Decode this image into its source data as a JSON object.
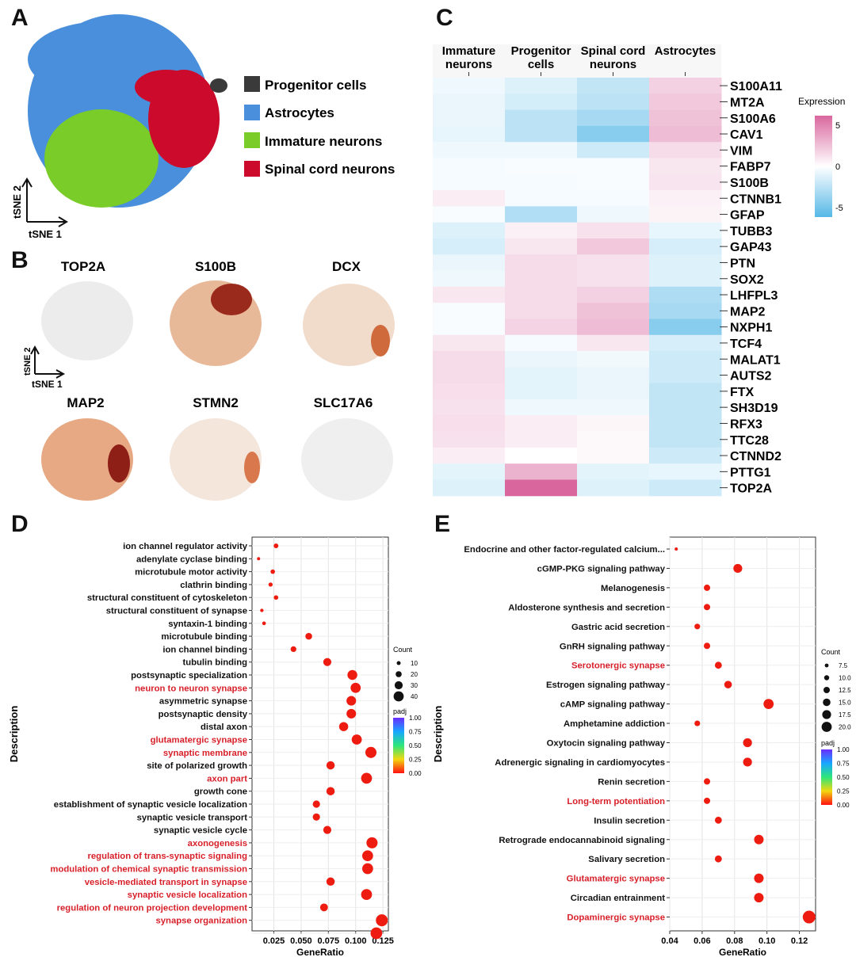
{
  "panels": {
    "A": "A",
    "B": "B",
    "C": "C",
    "D": "D",
    "E": "E"
  },
  "colors": {
    "progenitor": "#3a3a3a",
    "astrocytes": "#4a8fdb",
    "immature": "#7acc29",
    "spinal": "#cc0a2b",
    "highlight_text": "#d8202a",
    "dot": "#ee1c10"
  },
  "panel_a": {
    "legend": [
      "Progenitor cells",
      "Astrocytes",
      "Immature neurons",
      "Spinal cord neurons"
    ],
    "axis_y": "tSNE 2",
    "axis_x": "tSNE 1"
  },
  "panel_b": {
    "genes": [
      "TOP2A",
      "S100B",
      "DCX",
      "MAP2",
      "STMN2",
      "SLC17A6"
    ],
    "axis_y": "tSNE 2",
    "axis_x": "tSNE 1"
  },
  "chart_data": [
    {
      "type": "heatmap",
      "panel": "C",
      "columns": [
        "Immature neurons",
        "Progenitor cells",
        "Spinal cord neurons",
        "Astrocytes"
      ],
      "rows": [
        "S100A11",
        "MT2A",
        "S100A6",
        "CAV1",
        "VIM",
        "FABP7",
        "S100B",
        "CTNNB1",
        "GFAP",
        "TUBB3",
        "GAP43",
        "PTN",
        "SOX2",
        "LHFPL3",
        "MAP2",
        "NXPH1",
        "TCF4",
        "MALAT1",
        "AUTS2",
        "FTX",
        "SH3D19",
        "RFX3",
        "TTC28",
        "CTNND2",
        "PTTG1",
        "TOP2A"
      ],
      "values": [
        [
          -0.5,
          -1.0,
          -1.8,
          1.5
        ],
        [
          -0.6,
          -1.3,
          -2.0,
          1.8
        ],
        [
          -0.6,
          -2.0,
          -2.6,
          2.0
        ],
        [
          -0.7,
          -2.0,
          -3.5,
          2.2
        ],
        [
          -0.5,
          -0.5,
          -1.5,
          1.2
        ],
        [
          -0.3,
          -0.2,
          -0.2,
          0.8
        ],
        [
          -0.3,
          -0.3,
          -0.2,
          0.9
        ],
        [
          0.6,
          -0.3,
          -0.3,
          0.5
        ],
        [
          -0.2,
          -2.3,
          -0.5,
          0.4
        ],
        [
          -1.0,
          0.5,
          1.0,
          -0.7
        ],
        [
          -1.2,
          0.8,
          1.8,
          -1.2
        ],
        [
          -0.6,
          1.2,
          1.0,
          -1.0
        ],
        [
          -0.5,
          1.2,
          1.0,
          -1.0
        ],
        [
          0.8,
          1.2,
          1.5,
          -2.4
        ],
        [
          -0.2,
          1.2,
          2.0,
          -2.6
        ],
        [
          -0.2,
          1.4,
          2.2,
          -3.5
        ],
        [
          0.8,
          -0.3,
          0.8,
          -1.2
        ],
        [
          1.2,
          -0.6,
          -0.4,
          -1.5
        ],
        [
          1.2,
          -0.8,
          -0.6,
          -1.5
        ],
        [
          1.1,
          -0.8,
          -0.6,
          -1.8
        ],
        [
          1.0,
          -0.5,
          -0.5,
          -1.8
        ],
        [
          1.1,
          0.6,
          0.3,
          -1.8
        ],
        [
          1.0,
          0.6,
          0.2,
          -1.8
        ],
        [
          0.6,
          0.0,
          0.2,
          -1.5
        ],
        [
          -0.8,
          2.5,
          -0.8,
          -0.7
        ],
        [
          -1.0,
          5.0,
          -1.0,
          -1.5
        ]
      ],
      "legend_title": "Expression",
      "legend_ticks": [
        "5",
        "0",
        "-5"
      ],
      "range": [
        -5,
        5
      ]
    },
    {
      "type": "scatter",
      "panel": "D",
      "ylabel": "Description",
      "xlabel": "GeneRatio",
      "xlim": [
        0.005,
        0.13
      ],
      "xticks": [
        "0.025",
        "0.050",
        "0.075",
        "0.100",
        "0.125"
      ],
      "xtick_values": [
        0.025,
        0.05,
        0.075,
        0.1,
        0.125
      ],
      "size_legend_title": "Count",
      "size_legend": [
        "10",
        "20",
        "30",
        "40"
      ],
      "size_legend_values": [
        10,
        20,
        30,
        40
      ],
      "color_legend_title": "padj",
      "color_legend": [
        "1.00",
        "0.75",
        "0.50",
        "0.25",
        "0.00"
      ],
      "points": [
        {
          "label": "ion channel regulator activity",
          "x": 0.027,
          "count": 9,
          "red": false
        },
        {
          "label": "adenylate cyclase binding",
          "x": 0.011,
          "count": 3,
          "red": false
        },
        {
          "label": "microtubule motor activity",
          "x": 0.024,
          "count": 8,
          "red": false
        },
        {
          "label": "clathrin binding",
          "x": 0.022,
          "count": 7,
          "red": false
        },
        {
          "label": "structural constituent of cytoskeleton",
          "x": 0.027,
          "count": 8,
          "red": false
        },
        {
          "label": "structural constituent of synapse",
          "x": 0.014,
          "count": 4,
          "red": false
        },
        {
          "label": "syntaxin-1 binding",
          "x": 0.016,
          "count": 5,
          "red": false
        },
        {
          "label": "microtubule binding",
          "x": 0.057,
          "count": 17,
          "red": false
        },
        {
          "label": "ion channel binding",
          "x": 0.043,
          "count": 13,
          "red": false
        },
        {
          "label": "tubulin binding",
          "x": 0.074,
          "count": 22,
          "red": false
        },
        {
          "label": "postsynaptic specialization",
          "x": 0.097,
          "count": 29,
          "red": false
        },
        {
          "label": "neuron to neuron synapse",
          "x": 0.1,
          "count": 30,
          "red": true
        },
        {
          "label": "asymmetric synapse",
          "x": 0.096,
          "count": 28,
          "red": false
        },
        {
          "label": "postsynaptic density",
          "x": 0.096,
          "count": 28,
          "red": false
        },
        {
          "label": "distal axon",
          "x": 0.089,
          "count": 26,
          "red": false
        },
        {
          "label": "glutamatergic synapse",
          "x": 0.101,
          "count": 30,
          "red": true
        },
        {
          "label": "synaptic membrane",
          "x": 0.114,
          "count": 34,
          "red": true
        },
        {
          "label": "site of polarized growth",
          "x": 0.077,
          "count": 23,
          "red": false
        },
        {
          "label": "axon part",
          "x": 0.11,
          "count": 33,
          "red": true
        },
        {
          "label": "growth cone",
          "x": 0.077,
          "count": 23,
          "red": false
        },
        {
          "label": "establishment of synaptic vesicle localization",
          "x": 0.064,
          "count": 19,
          "red": false
        },
        {
          "label": "synaptic vesicle transport",
          "x": 0.064,
          "count": 19,
          "red": false
        },
        {
          "label": "synaptic vesicle cycle",
          "x": 0.074,
          "count": 22,
          "red": false
        },
        {
          "label": "axonogenesis",
          "x": 0.115,
          "count": 34,
          "red": true
        },
        {
          "label": "regulation of trans-synaptic signaling",
          "x": 0.111,
          "count": 33,
          "red": true
        },
        {
          "label": "modulation of chemical synaptic transmission",
          "x": 0.111,
          "count": 33,
          "red": true
        },
        {
          "label": "vesicle-mediated transport in synapse",
          "x": 0.077,
          "count": 23,
          "red": true
        },
        {
          "label": "synaptic vesicle localization",
          "x": 0.11,
          "count": 33,
          "red": true
        },
        {
          "label": "regulation of neuron projection development",
          "x": 0.071,
          "count": 21,
          "red": true
        },
        {
          "label": "synapse organization",
          "x": 0.124,
          "count": 37,
          "red": true
        },
        {
          "label": "",
          "x": 0.119,
          "count": 36,
          "red": false
        }
      ]
    },
    {
      "type": "scatter",
      "panel": "E",
      "ylabel": "Description",
      "xlabel": "GeneRatio",
      "xlim": [
        0.04,
        0.13
      ],
      "xticks": [
        "0.04",
        "0.06",
        "0.08",
        "0.10",
        "0.12"
      ],
      "xtick_values": [
        0.04,
        0.06,
        0.08,
        0.1,
        0.12
      ],
      "size_legend_title": "Count",
      "size_legend": [
        "7.5",
        "10.0",
        "12.5",
        "15.0",
        "17.5",
        "20.0"
      ],
      "size_legend_values": [
        7.5,
        10,
        12.5,
        15,
        17.5,
        20
      ],
      "color_legend_title": "padj",
      "color_legend": [
        "1.00",
        "0.75",
        "0.50",
        "0.25",
        "0.00"
      ],
      "points": [
        {
          "label": "Endocrine and other factor-regulated calcium...",
          "x": 0.044,
          "count": 5,
          "red": false
        },
        {
          "label": "cGMP-PKG signaling pathway",
          "x": 0.082,
          "count": 14,
          "red": false
        },
        {
          "label": "Melanogenesis",
          "x": 0.063,
          "count": 10,
          "red": false
        },
        {
          "label": "Aldosterone synthesis and secretion",
          "x": 0.063,
          "count": 10,
          "red": false
        },
        {
          "label": "Gastric acid secretion",
          "x": 0.057,
          "count": 9,
          "red": false
        },
        {
          "label": "GnRH signaling pathway",
          "x": 0.063,
          "count": 10,
          "red": false
        },
        {
          "label": "Serotonergic synapse",
          "x": 0.07,
          "count": 11,
          "red": true
        },
        {
          "label": "Estrogen signaling pathway",
          "x": 0.076,
          "count": 12,
          "red": false
        },
        {
          "label": "cAMP signaling pathway",
          "x": 0.101,
          "count": 16,
          "red": false
        },
        {
          "label": "Amphetamine addiction",
          "x": 0.057,
          "count": 9,
          "red": false
        },
        {
          "label": "Oxytocin signaling pathway",
          "x": 0.088,
          "count": 14,
          "red": false
        },
        {
          "label": "Adrenergic signaling in cardiomyocytes",
          "x": 0.088,
          "count": 14,
          "red": false
        },
        {
          "label": "Renin secretion",
          "x": 0.063,
          "count": 10,
          "red": false
        },
        {
          "label": "Long-term potentiation",
          "x": 0.063,
          "count": 10,
          "red": true
        },
        {
          "label": "Insulin secretion",
          "x": 0.07,
          "count": 11,
          "red": false
        },
        {
          "label": "Retrograde endocannabinoid signaling",
          "x": 0.095,
          "count": 15,
          "red": false
        },
        {
          "label": "Salivary secretion",
          "x": 0.07,
          "count": 11,
          "red": false
        },
        {
          "label": "Glutamatergic synapse",
          "x": 0.095,
          "count": 15,
          "red": true
        },
        {
          "label": "Circadian entrainment",
          "x": 0.095,
          "count": 15,
          "red": false
        },
        {
          "label": "Dopaminergic synapse",
          "x": 0.126,
          "count": 20,
          "red": true
        }
      ]
    }
  ]
}
